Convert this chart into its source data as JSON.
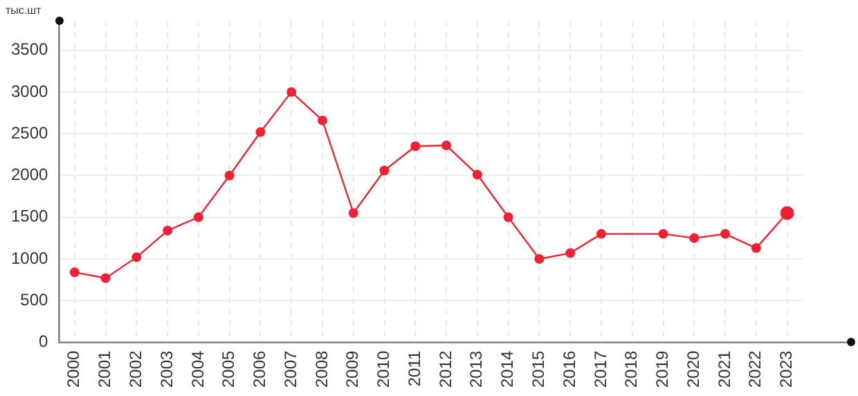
{
  "chart_data": {
    "type": "line",
    "ylabel": "тыс.шт",
    "categories": [
      "2000",
      "2001",
      "2002",
      "2003",
      "2004",
      "2005",
      "2006",
      "2007",
      "2008",
      "2009",
      "2010",
      "2011",
      "2012",
      "2013",
      "2014",
      "2015",
      "2016",
      "2017",
      "2018",
      "2019",
      "2020",
      "2021",
      "2022",
      "2023"
    ],
    "series": [
      {
        "color": "#ee2233",
        "values": [
          840,
          770,
          1020,
          1340,
          1500,
          2000,
          2520,
          3000,
          2660,
          1550,
          2060,
          2350,
          2360,
          2010,
          1500,
          1000,
          1070,
          1300,
          null,
          1300,
          1250,
          1300,
          1130,
          1550
        ]
      }
    ],
    "ylim": [
      0,
      3850
    ],
    "yticks": [
      0,
      500,
      1000,
      1500,
      2000,
      2500,
      3000,
      3500
    ],
    "grid": true,
    "marker": "circle",
    "line_style": "solid"
  }
}
